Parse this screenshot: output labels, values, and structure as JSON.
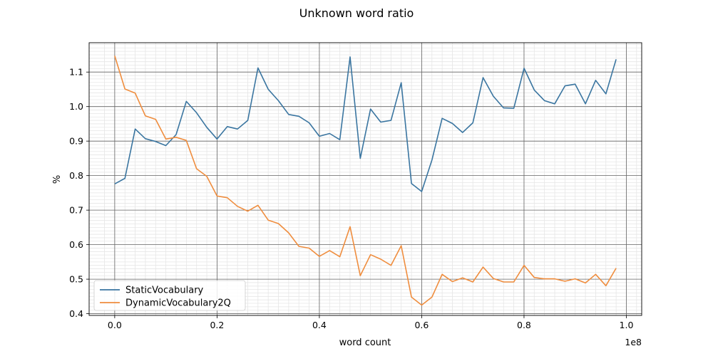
{
  "chart_data": {
    "type": "line",
    "title": "Unknown word ratio",
    "xlabel": "word count",
    "ylabel": "%",
    "x_offset_label": "1e8",
    "xlim": [
      -0.05,
      1.03
    ],
    "ylim": [
      0.395,
      1.185
    ],
    "x_ticks": [
      0.0,
      0.2,
      0.4,
      0.6,
      0.8,
      1.0
    ],
    "x_tick_labels": [
      "0.0",
      "0.2",
      "0.4",
      "0.6",
      "0.8",
      "1.0"
    ],
    "y_ticks": [
      0.4,
      0.5,
      0.6,
      0.7,
      0.8,
      0.9,
      1.0,
      1.1
    ],
    "y_tick_labels": [
      "0.4",
      "0.5",
      "0.6",
      "0.7",
      "0.8",
      "0.9",
      "1.0",
      "1.1"
    ],
    "grid": true,
    "minor_grid": true,
    "legend_position": "lower-left",
    "x": [
      0.0,
      0.02,
      0.04,
      0.06,
      0.08,
      0.1,
      0.12,
      0.14,
      0.16,
      0.18,
      0.2,
      0.22,
      0.24,
      0.26,
      0.28,
      0.3,
      0.32,
      0.34,
      0.36,
      0.38,
      0.4,
      0.42,
      0.44,
      0.46,
      0.48,
      0.5,
      0.52,
      0.54,
      0.56,
      0.58,
      0.6,
      0.62,
      0.64,
      0.66,
      0.68,
      0.7,
      0.72,
      0.74,
      0.76,
      0.78,
      0.8,
      0.82,
      0.84,
      0.86,
      0.88,
      0.9,
      0.92,
      0.94,
      0.96,
      0.98
    ],
    "series": [
      {
        "name": "StaticVocabulary",
        "color": "#3a75a0",
        "values": [
          0.776,
          0.792,
          0.935,
          0.907,
          0.899,
          0.887,
          0.919,
          1.015,
          0.982,
          0.94,
          0.906,
          0.942,
          0.935,
          0.96,
          1.112,
          1.05,
          1.017,
          0.977,
          0.972,
          0.953,
          0.914,
          0.922,
          0.904,
          1.144,
          0.85,
          0.993,
          0.955,
          0.96,
          1.069,
          0.777,
          0.754,
          0.845,
          0.966,
          0.951,
          0.925,
          0.953,
          1.084,
          1.03,
          0.996,
          0.995,
          1.111,
          1.048,
          1.017,
          1.008,
          1.06,
          1.065,
          1.008,
          1.076,
          1.037,
          1.137
        ]
      },
      {
        "name": "DynamicVocabulary2Q",
        "color": "#ef8d3e",
        "values": [
          1.147,
          1.051,
          1.039,
          0.973,
          0.963,
          0.906,
          0.911,
          0.902,
          0.82,
          0.798,
          0.741,
          0.736,
          0.711,
          0.697,
          0.714,
          0.671,
          0.661,
          0.634,
          0.595,
          0.59,
          0.566,
          0.583,
          0.565,
          0.652,
          0.51,
          0.571,
          0.558,
          0.54,
          0.597,
          0.448,
          0.425,
          0.448,
          0.514,
          0.493,
          0.504,
          0.492,
          0.535,
          0.502,
          0.492,
          0.492,
          0.54,
          0.505,
          0.501,
          0.501,
          0.494,
          0.501,
          0.489,
          0.514,
          0.481,
          0.532
        ]
      }
    ]
  }
}
